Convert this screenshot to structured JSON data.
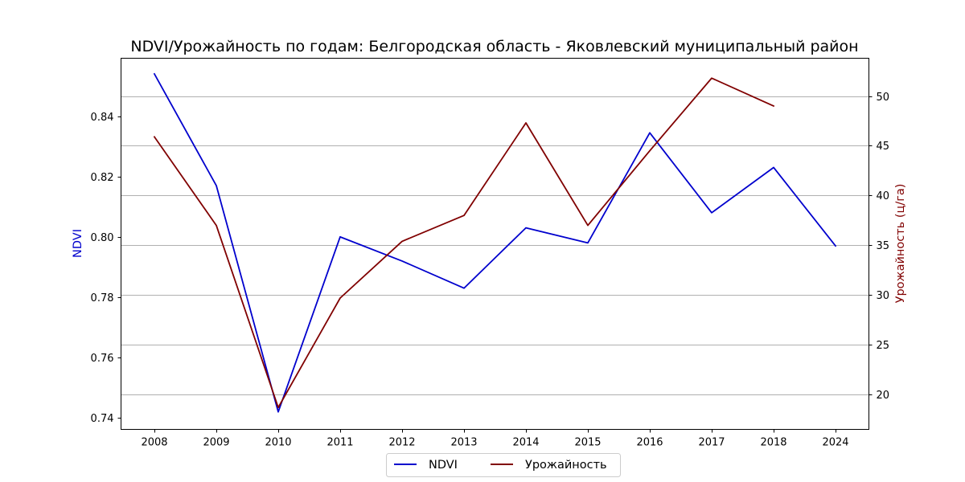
{
  "chart_data": {
    "type": "line",
    "title": "NDVI/Урожайность по годам: Белгородская область - Яковлевский муниципальный район",
    "xlabel": "",
    "ylabel_left": "NDVI",
    "ylabel_right": "Урожайность (ц/га)",
    "categories": [
      "2008",
      "2009",
      "2010",
      "2011",
      "2012",
      "2013",
      "2014",
      "2015",
      "2016",
      "2017",
      "2018",
      "2024"
    ],
    "y_left_ticks": [
      "0.74",
      "0.76",
      "0.78",
      "0.80",
      "0.82",
      "0.84"
    ],
    "y_right_ticks": [
      "20",
      "25",
      "30",
      "35",
      "40",
      "45",
      "50"
    ],
    "ylim_left": [
      0.7362,
      0.8592
    ],
    "ylim_right": [
      16.5,
      53.8
    ],
    "grid": "horizontal, right axis",
    "legend_position": "bottom-center",
    "series": [
      {
        "name": "NDVI",
        "axis": "left",
        "color": "#0000cd",
        "values": [
          0.854,
          0.817,
          0.742,
          0.8,
          0.792,
          0.783,
          0.803,
          0.798,
          0.8345,
          0.808,
          0.823,
          0.797
        ]
      },
      {
        "name": "Урожайность",
        "axis": "right",
        "color": "#800000",
        "values": [
          45.9,
          37.0,
          18.7,
          29.7,
          35.4,
          38.0,
          47.3,
          37.0,
          44.5,
          51.8,
          49.0,
          null
        ]
      }
    ]
  }
}
